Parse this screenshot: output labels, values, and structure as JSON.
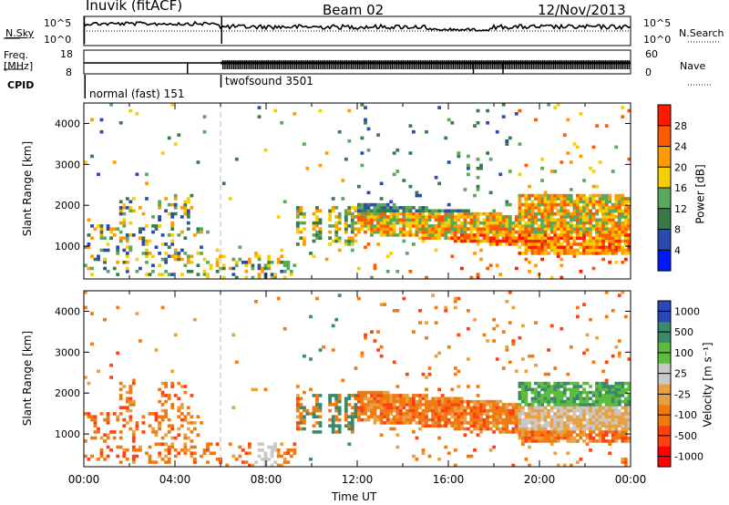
{
  "header": {
    "station": "Inuvik (fitACF)",
    "beam": "Beam 02",
    "date": "12/Nov/2013"
  },
  "left_labels": {
    "nsky": "N.Sky",
    "nsky_top": "10^5",
    "nsky_bottom": "10^0",
    "freq": "Freq.",
    "freq_unit": "[MHz]",
    "freq_top": "18",
    "freq_bottom": "8",
    "cpid": "CPID"
  },
  "right_labels": {
    "nsearch": "N.Search",
    "nsearch_top": "10^5",
    "nsearch_bottom": "10^0",
    "nave": "Nave",
    "nave_top": "60",
    "nave_bottom": "0"
  },
  "cpid_segments": [
    {
      "label": "normal (fast) 151",
      "start_hour": 0.0
    },
    {
      "label": "twofsound 3501",
      "start_hour": 6.0
    }
  ],
  "time_axis": {
    "label": "Time UT",
    "ticks": [
      "00:00",
      "04:00",
      "08:00",
      "12:00",
      "16:00",
      "20:00",
      "00:00"
    ]
  },
  "colors": {
    "power_scale": [
      "#0018ff",
      "#2a4ab0",
      "#3a7a4a",
      "#5aa85a",
      "#f4d000",
      "#ff9a00",
      "#ff5a00",
      "#ff1a00"
    ],
    "velocity_scale": [
      "#2a48b8",
      "#3a8a6a",
      "#5bbd3a",
      "#c8c8c8",
      "#e8a040",
      "#f07a10",
      "#ff4010",
      "#ff0000"
    ],
    "ground_scatter": "#bbbbbb"
  },
  "chart_data": [
    {
      "type": "heatmap",
      "panel": "power",
      "ylabel": "Slant Range [km]",
      "xlabel": "Time UT",
      "xlim": [
        0,
        24
      ],
      "ylim": [
        200,
        4500
      ],
      "y_ticks": [
        "1000",
        "2000",
        "3000",
        "4000"
      ],
      "colorbar": {
        "label": "Power [dB]",
        "ticks": [
          "4",
          "8",
          "12",
          "16",
          "20",
          "24",
          "28"
        ],
        "range": [
          0,
          32
        ]
      },
      "features": [
        {
          "hours": [
            0,
            5
          ],
          "range_km": [
            300,
            1500
          ],
          "note_level_db": 14
        },
        {
          "hours": [
            9.5,
            12
          ],
          "range_km": [
            1000,
            2000
          ],
          "note_level_db": 18
        },
        {
          "hours": [
            12,
            24
          ],
          "range_km": [
            800,
            2000
          ],
          "note_level_db": 24
        },
        {
          "hours": [
            19,
            24
          ],
          "range_km": [
            800,
            2200
          ],
          "note_level_db": 28
        }
      ]
    },
    {
      "type": "heatmap",
      "panel": "velocity",
      "ylabel": "Slant Range [km]",
      "xlabel": "Time UT",
      "xlim": [
        0,
        24
      ],
      "ylim": [
        200,
        4500
      ],
      "y_ticks": [
        "1000",
        "2000",
        "3000",
        "4000"
      ],
      "colorbar": {
        "label": "Velocity [m s⁻¹]",
        "ticks": [
          "1000",
          "500",
          "100",
          "25",
          "-25",
          "-100",
          "-500",
          "-1000"
        ],
        "range": [
          -1000,
          1000
        ]
      },
      "features": [
        {
          "hours": [
            0,
            5
          ],
          "range_km": [
            300,
            1500
          ],
          "note_velocity": -200
        },
        {
          "hours": [
            9.5,
            12
          ],
          "range_km": [
            1000,
            2000
          ],
          "note_velocity": 200
        },
        {
          "hours": [
            12,
            24
          ],
          "range_km": [
            800,
            2000
          ],
          "note_velocity": -200
        },
        {
          "hours": [
            19,
            24
          ],
          "range_km": [
            1200,
            2200
          ],
          "note_velocity": 0
        }
      ]
    }
  ]
}
